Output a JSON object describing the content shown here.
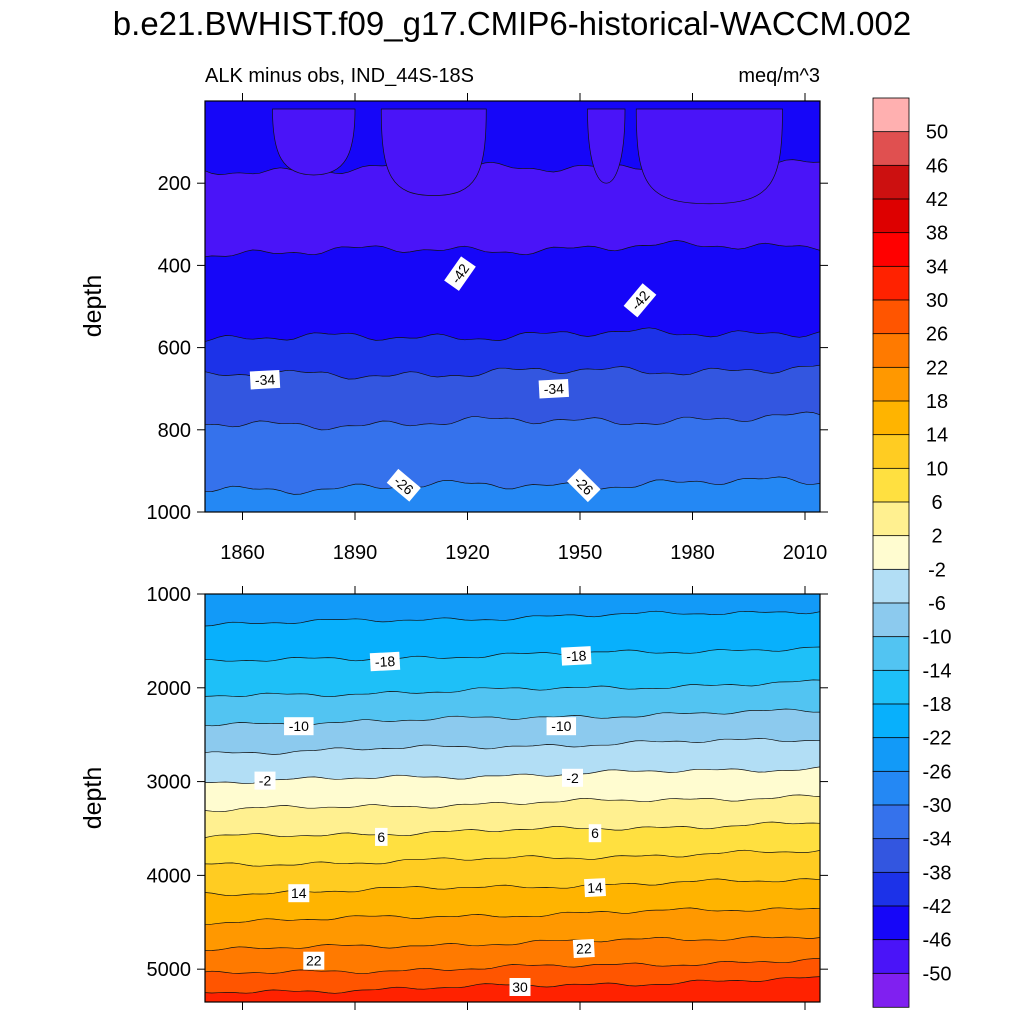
{
  "title": "b.e21.BWHIST.f09_g17.CMIP6-historical-WACCM.002",
  "subtitle_left": "ALK minus obs, IND_44S-18S",
  "subtitle_right": "meq/m^3",
  "colors": {
    "palette": [
      "#8020f0",
      "#4a14f8",
      "#1606f8",
      "#1c32e8",
      "#3356e0",
      "#3572ec",
      "#2488f4",
      "#129af8",
      "#08b0fc",
      "#1ec0f8",
      "#52c4f2",
      "#8ccaee",
      "#b2def5",
      "#fffcd0",
      "#fff090",
      "#ffe040",
      "#ffcc22",
      "#ffb400",
      "#ff9800",
      "#ff7a00",
      "#ff5500",
      "#ff2200",
      "#ff0000",
      "#dd0000",
      "#cc1010",
      "#e05050",
      "#ffb0b0"
    ]
  },
  "chart_data": {
    "type": "contour",
    "colorbar": {
      "levels": [
        -50,
        -46,
        -42,
        -38,
        -34,
        -30,
        -26,
        -22,
        -18,
        -14,
        -10,
        -6,
        -2,
        2,
        6,
        10,
        14,
        18,
        22,
        26,
        30,
        34,
        38,
        42,
        46,
        50
      ],
      "tick_labels": [
        "50",
        "46",
        "42",
        "38",
        "34",
        "30",
        "26",
        "22",
        "18",
        "14",
        "10",
        "6",
        "2",
        "-2",
        "-6",
        "-10",
        "-14",
        "-18",
        "-22",
        "-26",
        "-30",
        "-34",
        "-38",
        "-42",
        "-46",
        "-50"
      ]
    },
    "panels": [
      {
        "name": "upper",
        "xlim": [
          1850,
          2014
        ],
        "ylim": [
          1000,
          0
        ],
        "ylabel": "depth",
        "xticks": [
          1860,
          1890,
          1920,
          1950,
          1980,
          2010
        ],
        "xtick_labels": [
          "1860",
          "1890",
          "1920",
          "1950",
          "1980",
          "2010"
        ],
        "yticks": [
          200,
          400,
          600,
          800,
          1000
        ],
        "ytick_labels": [
          "200",
          "400",
          "600",
          "800",
          "1000"
        ],
        "contours": [
          {
            "level": -50,
            "depth": 160
          },
          {
            "level": -46,
            "depth": 360
          },
          {
            "level": -42,
            "depth": 570
          },
          {
            "level": -38,
            "depth": 660
          },
          {
            "level": -34,
            "depth": 780
          },
          {
            "level": -30,
            "depth": 935
          }
        ],
        "contour_labels": [
          {
            "text": "-42",
            "x": 1918,
            "y": 420,
            "angle": -55
          },
          {
            "text": "-42",
            "x": 1966,
            "y": 485,
            "angle": -50
          },
          {
            "text": "-34",
            "x": 1866,
            "y": 678,
            "angle": -3
          },
          {
            "text": "-34",
            "x": 1943,
            "y": 700,
            "angle": -3
          },
          {
            "text": "-26",
            "x": 1903,
            "y": 935,
            "angle": 40
          },
          {
            "text": "-26",
            "x": 1951,
            "y": 935,
            "angle": 45
          }
        ],
        "top_color": "#1606f8",
        "bottom_color": "#129af8"
      },
      {
        "name": "lower",
        "xlim": [
          1850,
          2014
        ],
        "ylim": [
          5350,
          1000
        ],
        "ylabel": "depth",
        "yticks": [
          1000,
          2000,
          3000,
          4000,
          5000
        ],
        "ytick_labels": [
          "1000",
          "2000",
          "3000",
          "4000",
          "5000"
        ],
        "contours": [
          {
            "level": -22,
            "depth": 1250
          },
          {
            "level": -18,
            "depth": 1650
          },
          {
            "level": -14,
            "depth": 2020
          },
          {
            "level": -10,
            "depth": 2320
          },
          {
            "level": -6,
            "depth": 2620
          },
          {
            "level": -2,
            "depth": 2930
          },
          {
            "level": 2,
            "depth": 3230
          },
          {
            "level": 6,
            "depth": 3520
          },
          {
            "level": 10,
            "depth": 3820
          },
          {
            "level": 14,
            "depth": 4120
          },
          {
            "level": 18,
            "depth": 4420
          },
          {
            "level": 22,
            "depth": 4720
          },
          {
            "level": 26,
            "depth": 4980
          },
          {
            "level": 30,
            "depth": 5180
          }
        ],
        "contour_labels": [
          {
            "text": "-18",
            "x": 1898,
            "y": 1720,
            "angle": -3
          },
          {
            "text": "-18",
            "x": 1949,
            "y": 1660,
            "angle": -3
          },
          {
            "text": "-10",
            "x": 1875,
            "y": 2410,
            "angle": 0
          },
          {
            "text": "-10",
            "x": 1945,
            "y": 2410,
            "angle": 0
          },
          {
            "text": "-2",
            "x": 1866,
            "y": 2990,
            "angle": 0
          },
          {
            "text": "-2",
            "x": 1948,
            "y": 2960,
            "angle": 0
          },
          {
            "text": "6",
            "x": 1897,
            "y": 3590,
            "angle": 0
          },
          {
            "text": "6",
            "x": 1954,
            "y": 3550,
            "angle": 0
          },
          {
            "text": "14",
            "x": 1875,
            "y": 4190,
            "angle": 0
          },
          {
            "text": "14",
            "x": 1954,
            "y": 4130,
            "angle": -3
          },
          {
            "text": "22",
            "x": 1879,
            "y": 4910,
            "angle": 0
          },
          {
            "text": "22",
            "x": 1951,
            "y": 4780,
            "angle": -3
          },
          {
            "text": "30",
            "x": 1934,
            "y": 5190,
            "angle": 0
          }
        ],
        "top_color": "#129af8",
        "bottom_color": "#ff2200"
      }
    ]
  }
}
